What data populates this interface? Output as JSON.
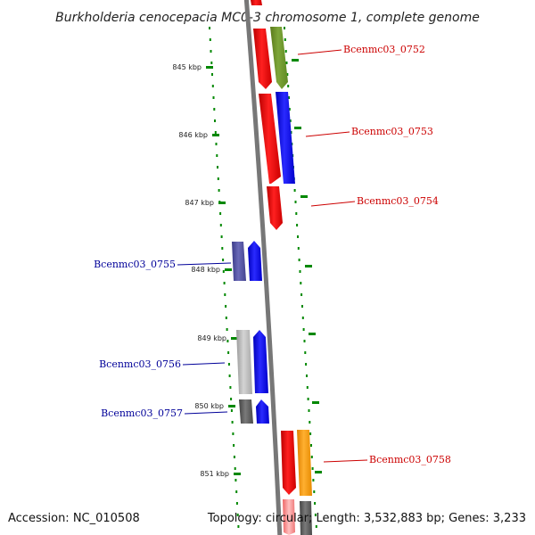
{
  "title": "Burkholderia cenocepacia MC0-3 chromosome 1, complete genome",
  "footer": {
    "accession": "Accession: NC_010508",
    "topology": "Topology: circular; Length: 3,532,883 bp; Genes: 3,233"
  },
  "ticks": [
    "845 kbp",
    "846 kbp",
    "847 kbp",
    "848 kbp",
    "849 kbp",
    "850 kbp",
    "851 kbp"
  ],
  "genes": [
    {
      "label": "Bcenmc03_0752",
      "color": "#cc0000"
    },
    {
      "label": "Bcenmc03_0753",
      "color": "#cc0000"
    },
    {
      "label": "Bcenmc03_0754",
      "color": "#cc0000"
    },
    {
      "label": "Bcenmc03_0755",
      "color": "#000099"
    },
    {
      "label": "Bcenmc03_0756",
      "color": "#000099"
    },
    {
      "label": "Bcenmc03_0757",
      "color": "#000099"
    },
    {
      "label": "Bcenmc03_0758",
      "color": "#cc0000"
    }
  ],
  "colors": {
    "backbone": "#777777",
    "tick": "#008800",
    "forward_label": "#cc0000",
    "reverse_label": "#000099",
    "red": "#ee0000",
    "olive": "#6b8e23",
    "blue": "#0000ee",
    "slate": "#4b4b9a",
    "light_gray": "#b4b4b4",
    "dark_gray": "#555555",
    "orange": "#ff9900",
    "pink": "#ff8888"
  }
}
